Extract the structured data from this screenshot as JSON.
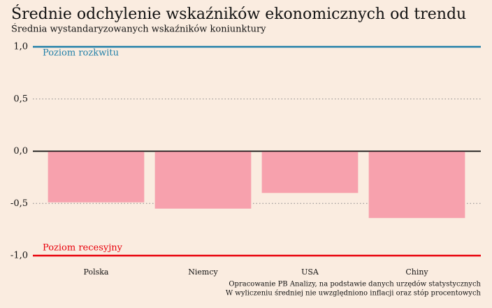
{
  "chart_data": {
    "type": "bar",
    "title": "Średnie odchylenie wskaźników ekonomicznych od trendu",
    "subtitle": "Średnia wystandaryzowanych wskaźników koniunktury",
    "categories": [
      "Polska",
      "Niemcy",
      "USA",
      "Chiny"
    ],
    "values": [
      -0.49,
      -0.55,
      -0.4,
      -0.64
    ],
    "color": "#f7a1ad",
    "ylim": [
      -1,
      1
    ],
    "yticks": [
      {
        "value": -1,
        "label": "-1,0"
      },
      {
        "value": -0.5,
        "label": "-0,5"
      },
      {
        "value": 0,
        "label": "0,0"
      },
      {
        "value": 0.5,
        "label": "0,5"
      },
      {
        "value": 1,
        "label": "1,0"
      }
    ],
    "grid": true,
    "reference_lines": [
      {
        "value": 1,
        "label": "Poziom rozkwitu",
        "color": "#1f7fa8"
      },
      {
        "value": -1,
        "label": "Poziom recesyjny",
        "color": "#e8000b"
      }
    ],
    "notes": [
      "Opracowanie PB Analizy, na podstawie danych urzędów statystycznych",
      "W wyliczeniu średniej nie uwzględniono inflacji oraz stóp procentowych"
    ]
  }
}
